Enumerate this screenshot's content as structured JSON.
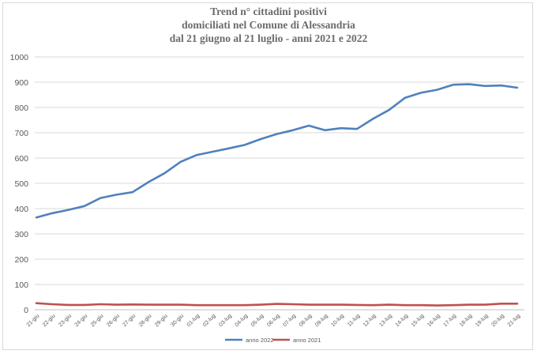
{
  "chart_data": {
    "type": "line",
    "title_lines": [
      "Trend n° cittadini positivi",
      "domiciliati nel Comune di Alessandria",
      "dal 21 giugno al 21 luglio - anni 2021 e 2022"
    ],
    "xlabel": "",
    "ylabel": "",
    "ylim": [
      0,
      1000
    ],
    "yticks": [
      0,
      100,
      200,
      300,
      400,
      500,
      600,
      700,
      800,
      900,
      1000
    ],
    "grid": true,
    "legend_position": "bottom",
    "categories": [
      "21-giu",
      "22-giu",
      "23-giu",
      "24-giu",
      "25-giu",
      "26-giu",
      "27-giu",
      "28-giu",
      "29-giu",
      "30-giu",
      "01-lug",
      "02-lug",
      "03-lug",
      "04-lug",
      "05-lug",
      "06-lug",
      "07-lug",
      "08-lug",
      "09-lug",
      "10-lug",
      "11-lug",
      "12-lug",
      "13-lug",
      "14-lug",
      "15-lug",
      "16-lug",
      "17-lug",
      "18-lug",
      "19-lug",
      "20-lug",
      "21-lug"
    ],
    "series": [
      {
        "name": "anno 2022",
        "color": "#4f81bd",
        "values": [
          365,
          382,
          395,
          410,
          442,
          455,
          465,
          505,
          540,
          585,
          612,
          625,
          638,
          652,
          675,
          695,
          710,
          728,
          710,
          718,
          715,
          755,
          790,
          838,
          858,
          870,
          890,
          892,
          885,
          887,
          878
        ]
      },
      {
        "name": "anno 2021",
        "color": "#c0504d",
        "values": [
          26,
          22,
          19,
          19,
          22,
          20,
          21,
          20,
          20,
          20,
          18,
          18,
          18,
          18,
          20,
          23,
          22,
          20,
          20,
          20,
          19,
          18,
          20,
          18,
          18,
          17,
          18,
          20,
          20,
          24,
          24
        ]
      }
    ]
  }
}
